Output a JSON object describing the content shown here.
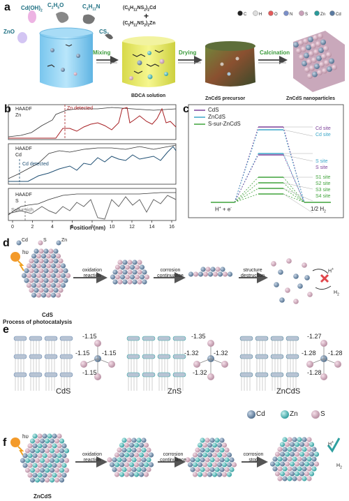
{
  "panel_a": {
    "label": "a",
    "reagents": {
      "cdoh2": "Cd(OH)",
      "cdoh2_sub": "2",
      "c2h5o": "C",
      "c2h5o_sub1": "2",
      "c2h5o_mid": "H",
      "c2h5o_sub2": "5",
      "c2h5o_end": "O",
      "c4h11n": "C",
      "c4h11n_sub1": "4",
      "c4h11n_mid": "H",
      "c4h11n_sub2": "11",
      "c4h11n_end": "N",
      "zno": "ZnO",
      "cs2": "CS",
      "cs2_sub": "2"
    },
    "complexes": {
      "cd_complex": "(C5H11NS2)2Cd",
      "plus": "+",
      "zn_complex": "(C5H11NS2)2Zn"
    },
    "legend": [
      "C",
      "H",
      "O",
      "N",
      "S",
      "Zn",
      "Cd"
    ],
    "arrows": [
      "Mixing",
      "Drying",
      "Calcination"
    ],
    "captions": [
      "BDCA solution",
      "ZnCdS precursor",
      "ZnCdS nanoparticles"
    ]
  },
  "panel_b": {
    "label": "b",
    "xlabel": "Position (nm)",
    "xticks": [
      "0",
      "2",
      "4",
      "6",
      "8",
      "10",
      "12",
      "14",
      "16"
    ],
    "rows": [
      {
        "legend1": "HAADF",
        "legend2": "Zn",
        "annotation": "Zn detected"
      },
      {
        "legend1": "HAADF",
        "legend2": "Cd",
        "annotation": "Cd detected"
      },
      {
        "legend1": "HAADF",
        "legend2": "S",
        "annotation": "Sulfur-rich"
      }
    ]
  },
  "panel_c": {
    "label": "c",
    "legend": [
      "CdS",
      "ZnCdS",
      "S-sur-ZnCdS"
    ],
    "left_label": "H+ + e-",
    "right_label": "1/2 H2",
    "sites": [
      "Cd site",
      "Cd site",
      "S site",
      "S site",
      "S1 site",
      "S2 site",
      "S3 site",
      "S4 site"
    ],
    "colors": {
      "cds": "#7b3f98",
      "zncds": "#3aa6c8",
      "ssur": "#3fa23a"
    }
  },
  "panel_d": {
    "label": "d",
    "legend": [
      "Cd",
      "S",
      "Zn"
    ],
    "hv": "hυ",
    "steps": [
      "oxidation reaction",
      "corrosion continuance",
      "structure destruction"
    ],
    "cds_label": "CdS",
    "process": "Process of photocatalysis",
    "h_plus": "H+",
    "h2": "H2"
  },
  "panel_e": {
    "label": "e",
    "materials": [
      "CdS",
      "ZnS",
      "ZnCdS"
    ],
    "cds_values": [
      "-1.15",
      "-1.15",
      "-1.15",
      "-1.15"
    ],
    "zns_values": [
      "-1.35",
      "-1.32",
      "-1.32",
      "-1.32"
    ],
    "zncds_values": [
      "-1.27",
      "-1.28",
      "-1.28",
      "-1.28"
    ]
  },
  "panel_f": {
    "label": "f",
    "legend": [
      "Cd",
      "Zn",
      "S"
    ],
    "hv": "hυ",
    "steps": [
      "oxidation reaction",
      "corrosion continuance",
      "corrosion stop"
    ],
    "zncds_label": "ZnCdS",
    "surface_top": "Sulfur-rich surface",
    "surface_bottom": "Sulfur-rich surface",
    "h_plus": "H+",
    "h2": "H2"
  }
}
